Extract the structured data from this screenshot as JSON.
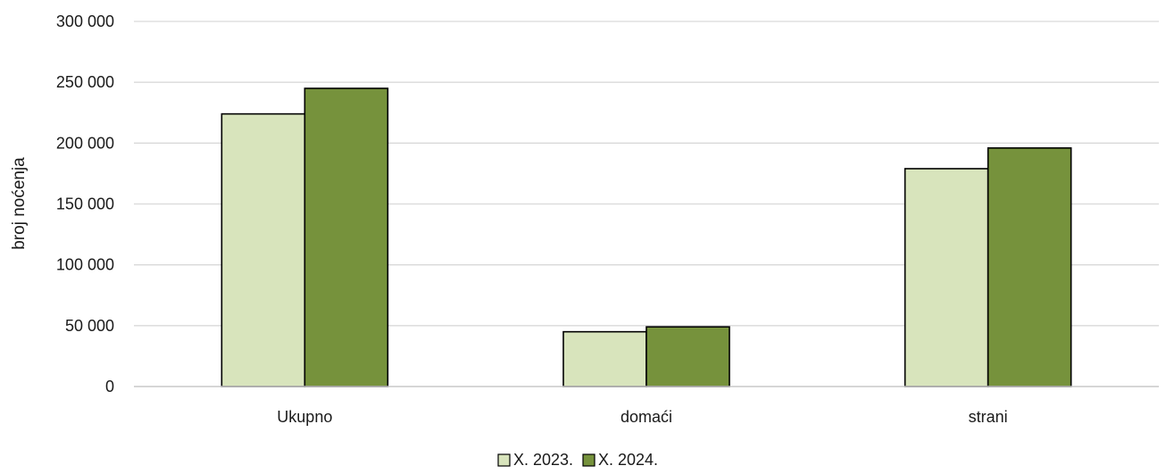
{
  "chart_data": {
    "type": "bar",
    "title": "",
    "xlabel": "",
    "ylabel": "broj noćenja",
    "ylim": [
      0,
      300000
    ],
    "yticks": [
      0,
      50000,
      100000,
      150000,
      200000,
      250000,
      300000
    ],
    "ytick_labels": [
      "0",
      "50 000",
      "100 000",
      "150 000",
      "200 000",
      "250 000",
      "300 000"
    ],
    "categories": [
      "Ukupno",
      "domaći",
      "strani"
    ],
    "series": [
      {
        "name": "X. 2023.",
        "values": [
          224000,
          45000,
          179000
        ],
        "color": "#d8e4bc"
      },
      {
        "name": "X. 2024.",
        "values": [
          245000,
          49000,
          196000
        ],
        "color": "#76923c"
      }
    ],
    "grid": true,
    "legend_position": "bottom"
  }
}
